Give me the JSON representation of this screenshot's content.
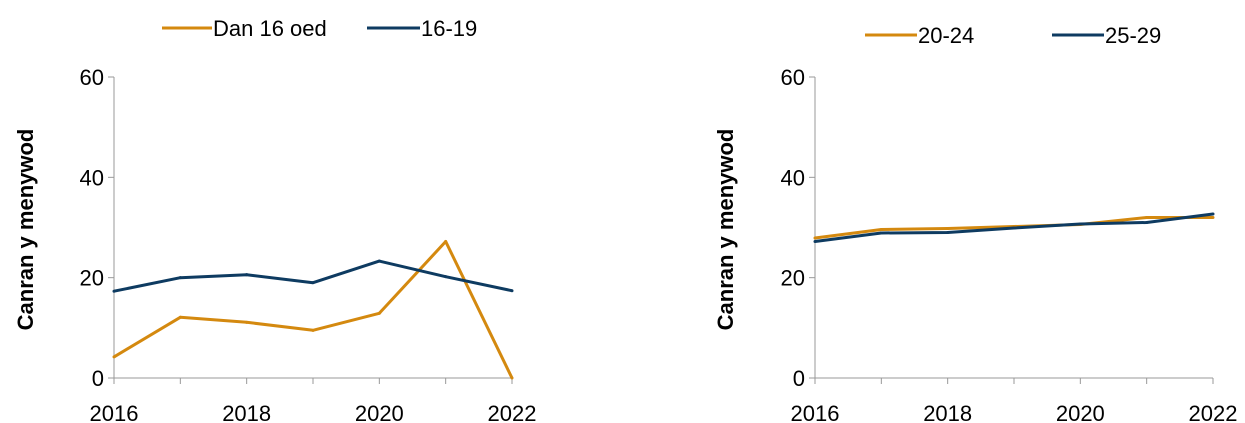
{
  "chart_data": [
    {
      "type": "line",
      "x": [
        2016,
        2017,
        2018,
        2019,
        2020,
        2021,
        2022
      ],
      "xticks": [
        "2016",
        "2018",
        "2020",
        "2022"
      ],
      "yticks": [
        "0",
        "20",
        "40",
        "60"
      ],
      "ylabel": "Canran y menywod",
      "xlim": [
        2016,
        2022
      ],
      "ylim": [
        0,
        60
      ],
      "grid": false,
      "legend_position": "top",
      "series": [
        {
          "name": "Dan 16 oed",
          "color": "#D4890F",
          "values": [
            4.2,
            12.1,
            11.1,
            9.5,
            12.9,
            27.2,
            0
          ]
        },
        {
          "name": "16-19",
          "color": "#0E3B61",
          "values": [
            17.3,
            20.0,
            20.6,
            19.0,
            23.3,
            20.2,
            17.4
          ]
        }
      ]
    },
    {
      "type": "line",
      "x": [
        2016,
        2017,
        2018,
        2019,
        2020,
        2021,
        2022
      ],
      "xticks": [
        "2016",
        "2018",
        "2020",
        "2022"
      ],
      "yticks": [
        "0",
        "20",
        "40",
        "60"
      ],
      "ylabel": "Canran y menywod",
      "xlim": [
        2016,
        2022
      ],
      "ylim": [
        0,
        60
      ],
      "grid": false,
      "legend_position": "top",
      "series": [
        {
          "name": "20-24",
          "color": "#D4890F",
          "values": [
            27.9,
            29.6,
            29.8,
            30.2,
            30.6,
            32.0,
            32.0
          ]
        },
        {
          "name": "25-29",
          "color": "#0E3B61",
          "values": [
            27.2,
            28.9,
            29.0,
            29.9,
            30.7,
            31.0,
            32.7
          ]
        }
      ]
    }
  ]
}
